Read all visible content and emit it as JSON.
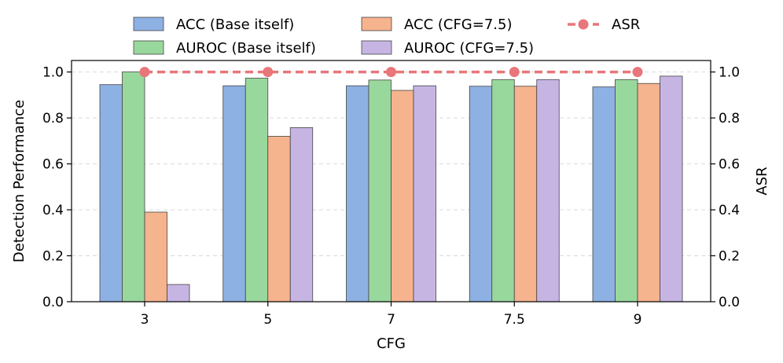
{
  "chart_data": {
    "type": "bar",
    "xlabel": "CFG",
    "ylabel": "Detection Performance",
    "y2label": "ASR",
    "categories": [
      "3",
      "5",
      "7",
      "7.5",
      "9"
    ],
    "ylim": [
      0,
      1.05
    ],
    "y2lim": [
      0,
      1.05
    ],
    "yticks": [
      "0.0",
      "0.2",
      "0.4",
      "0.6",
      "0.8",
      "1.0"
    ],
    "y2ticks": [
      "0.0",
      "0.2",
      "0.4",
      "0.6",
      "0.8",
      "1.0"
    ],
    "grid": "horizontal dashed",
    "legend_position": "top-center",
    "series": [
      {
        "name": "ACC (Base itself)",
        "color": "#8EB1E3",
        "values": [
          0.945,
          0.94,
          0.94,
          0.938,
          0.935
        ]
      },
      {
        "name": "AUROC (Base itself)",
        "color": "#99D89D",
        "values": [
          1.0,
          0.973,
          0.965,
          0.967,
          0.967
        ]
      },
      {
        "name": "ACC (CFG=7.5)",
        "color": "#F5B38E",
        "values": [
          0.39,
          0.72,
          0.92,
          0.938,
          0.95
        ]
      },
      {
        "name": "AUROC (CFG=7.5)",
        "color": "#C6B5E3",
        "values": [
          0.075,
          0.758,
          0.94,
          0.967,
          0.982
        ]
      }
    ],
    "line_series": {
      "name": "ASR",
      "color": "#E8767A",
      "values": [
        1.0,
        1.0,
        1.0,
        1.0,
        1.0
      ]
    }
  }
}
